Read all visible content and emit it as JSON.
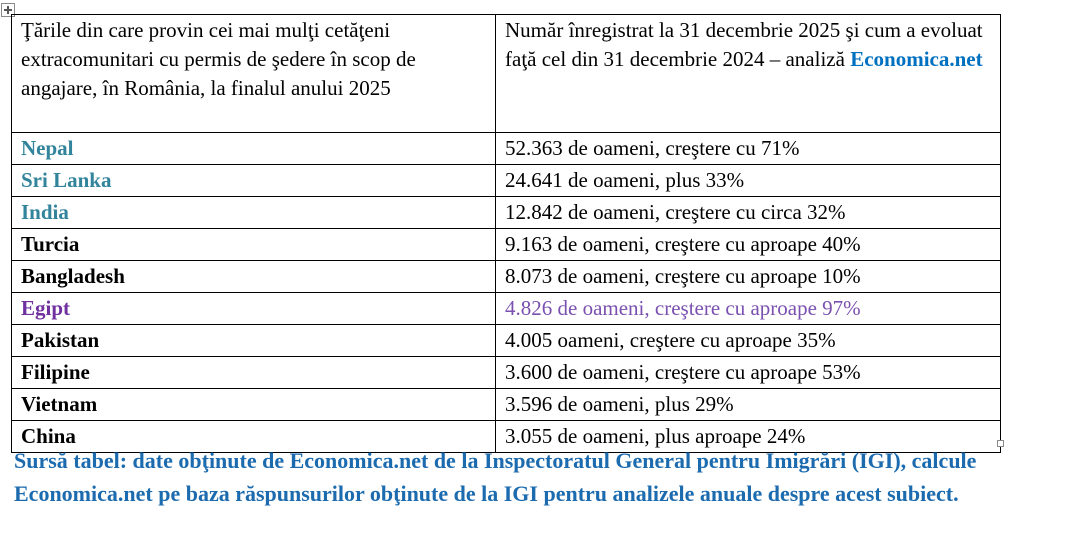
{
  "page": {
    "background": "#FFFFFF"
  },
  "colors": {
    "table_border": "#000000",
    "country_teal": "#31849B",
    "egipt_purple": "#7030A0",
    "egipt_value_purple": "#7A50B0",
    "economica_link_blue": "#0070C0",
    "source_note_blue": "#1C6BAF",
    "body_text": "#000000"
  },
  "icons": {
    "move_handle": "table-move-handle",
    "resize_handle": "table-resize-handle"
  },
  "table": {
    "header": {
      "countries": "Ţările din care provin cei mai mulţi cetăţeni extracomunitari cu permis de şedere în scop de angajare, în România, la finalul anului 2025",
      "numbers_text": "Număr înregistrat la 31 decembrie 2025 şi cum a evoluat faţă cel din 31 decembrie 2024 – analiză ",
      "numbers_brand": "Economica.net"
    },
    "rows": [
      {
        "country": "Nepal",
        "value": "52.363 de oameni, creştere cu 71%"
      },
      {
        "country": "Sri Lanka",
        "value": "24.641 de oameni, plus 33%"
      },
      {
        "country": "India",
        "value": "12.842 de oameni, creştere cu circa 32%"
      },
      {
        "country": "Turcia",
        "value": "9.163 de oameni, creştere cu aproape 40%"
      },
      {
        "country": "Bangladesh",
        "value": "8.073 de oameni, creştere cu aproape 10%"
      },
      {
        "country": "Egipt",
        "value": "4.826 de oameni, creştere cu aproape 97%"
      },
      {
        "country": "Pakistan",
        "value": "4.005 oameni, creştere cu aproape 35%"
      },
      {
        "country": "Filipine",
        "value": "3.600 de oameni, creştere cu aproape 53%"
      },
      {
        "country": "Vietnam",
        "value": "3.596 de oameni, plus 29%"
      },
      {
        "country": "China",
        "value": "3.055 de oameni, plus aproape 24%"
      }
    ]
  },
  "source_note": "Sursă tabel: date obţinute de Economica.net de la Inspectoratul General pentru Imigrări (IGI), calcule Economica.net pe baza răspunsurilor obţinute de la IGI pentru analizele anuale despre acest subiect."
}
